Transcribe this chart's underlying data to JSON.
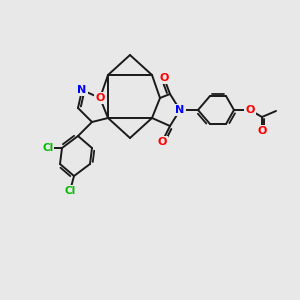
{
  "background_color": "#e8e8e8",
  "bond_color": "#1a1a1a",
  "atom_colors": {
    "N": "#0000ff",
    "O": "#ff0000",
    "Cl": "#00bb00"
  },
  "figsize": [
    3.0,
    3.0
  ],
  "dpi": 100
}
